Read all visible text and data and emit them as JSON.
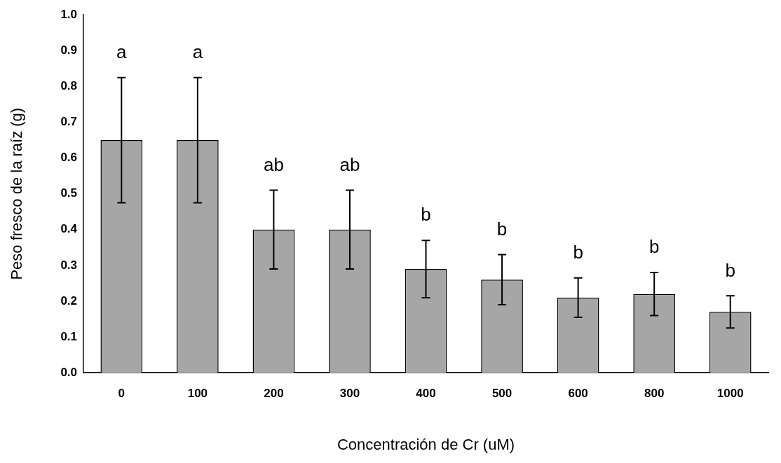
{
  "chart_data": {
    "type": "bar",
    "xlabel": "Concentración de Cr (uM)",
    "ylabel": "Peso fresco de la raíz (g)",
    "categories": [
      "0",
      "100",
      "200",
      "300",
      "400",
      "500",
      "600",
      "800",
      "1000"
    ],
    "values": [
      0.65,
      0.65,
      0.4,
      0.4,
      0.29,
      0.26,
      0.21,
      0.22,
      0.17
    ],
    "errors": [
      0.175,
      0.175,
      0.11,
      0.11,
      0.08,
      0.07,
      0.055,
      0.06,
      0.045
    ],
    "color": "#a6a6a6",
    "ylim": [
      0,
      1
    ],
    "yticks": [
      {
        "value": 0,
        "label": "0.0"
      },
      {
        "value": 0.1,
        "label": "0.1"
      },
      {
        "value": 0.2,
        "label": "0.2"
      },
      {
        "value": 0.3,
        "label": "0.3"
      },
      {
        "value": 0.4,
        "label": "0.4"
      },
      {
        "value": 0.5,
        "label": "0.5"
      },
      {
        "value": 0.6,
        "label": "0.6"
      },
      {
        "value": 0.7,
        "label": "0.7"
      },
      {
        "value": 0.8,
        "label": "0.8"
      },
      {
        "value": 0.9,
        "label": "0.9"
      },
      {
        "value": 1,
        "label": "1.0"
      }
    ],
    "annotations": [
      "a",
      "a",
      "ab",
      "ab",
      "b",
      "b",
      "b",
      "b",
      "b"
    ],
    "grid": false,
    "legend": false
  }
}
